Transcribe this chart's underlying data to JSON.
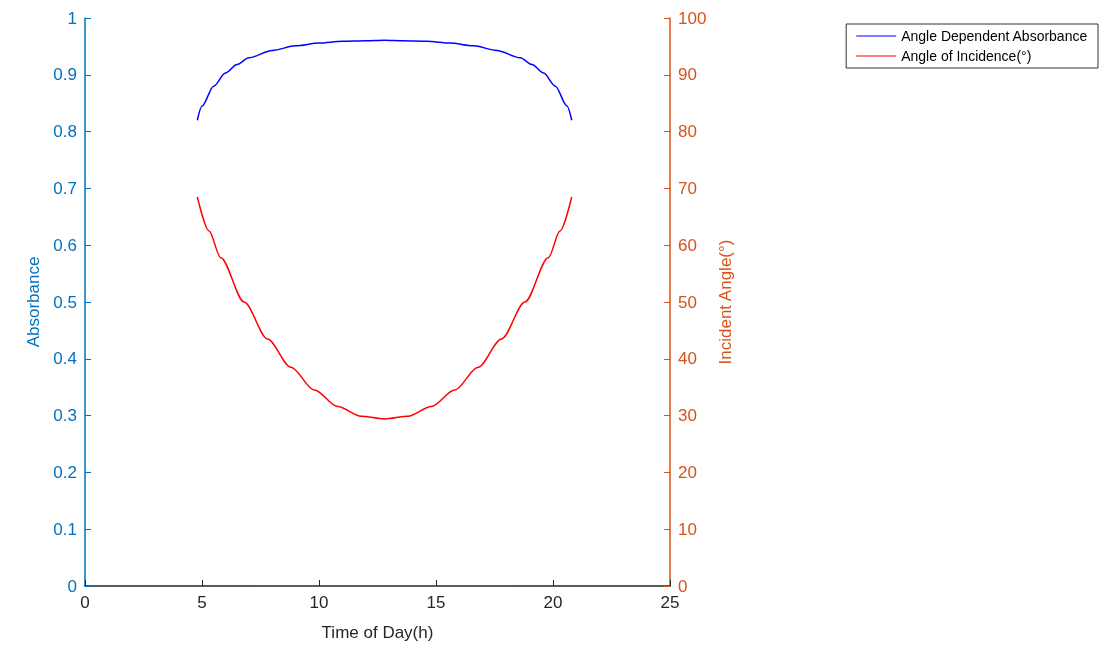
{
  "chart_data": {
    "type": "line",
    "xlabel": "Time of Day(h)",
    "ylabel": "Absorbance",
    "y2label": "Incident Angle(°)",
    "xlim": [
      0,
      25
    ],
    "xticks": [
      0,
      5,
      10,
      15,
      20,
      25
    ],
    "ylim": [
      0,
      1
    ],
    "yticks": [
      0,
      0.1,
      0.2,
      0.3,
      0.4,
      0.5,
      0.6,
      0.7,
      0.8,
      0.9,
      1
    ],
    "y2lim": [
      0,
      100
    ],
    "y2ticks": [
      0,
      10,
      20,
      30,
      40,
      50,
      60,
      70,
      80,
      90,
      100
    ],
    "legend": "top right",
    "grid": false,
    "marker": "none",
    "line_style": "solid",
    "series": [
      {
        "name": "Angle Dependent Absorbance",
        "color": "#0000ff",
        "x": [
          4.8,
          5.0,
          5.5,
          6,
          6.5,
          7,
          8,
          9,
          10,
          11,
          12,
          12.8,
          13.6,
          14.6,
          15.6,
          16.6,
          17.6,
          18.6,
          19.1,
          19.6,
          20.1,
          20.6,
          20.8
        ],
        "values": [
          0.82,
          0.845,
          0.88,
          0.903,
          0.918,
          0.93,
          0.943,
          0.951,
          0.956,
          0.959,
          0.96,
          0.961,
          0.96,
          0.959,
          0.956,
          0.951,
          0.943,
          0.93,
          0.918,
          0.903,
          0.88,
          0.845,
          0.82
        ]
      },
      {
        "name": "Angle of Incidence(°)",
        "color": "#ff0000",
        "axis": "y2",
        "x": [
          4.8,
          5.3,
          5.8,
          6.8,
          7.8,
          8.8,
          9.8,
          10.8,
          11.8,
          12.8,
          13.8,
          14.8,
          15.8,
          16.8,
          17.8,
          18.8,
          19.8,
          20.3,
          20.8
        ],
        "values": [
          68.5,
          62.5,
          57.8,
          50,
          43.5,
          38.5,
          34.5,
          31.6,
          29.9,
          29.4,
          29.9,
          31.6,
          34.5,
          38.5,
          43.5,
          50,
          57.8,
          62.5,
          68.5
        ]
      }
    ]
  }
}
